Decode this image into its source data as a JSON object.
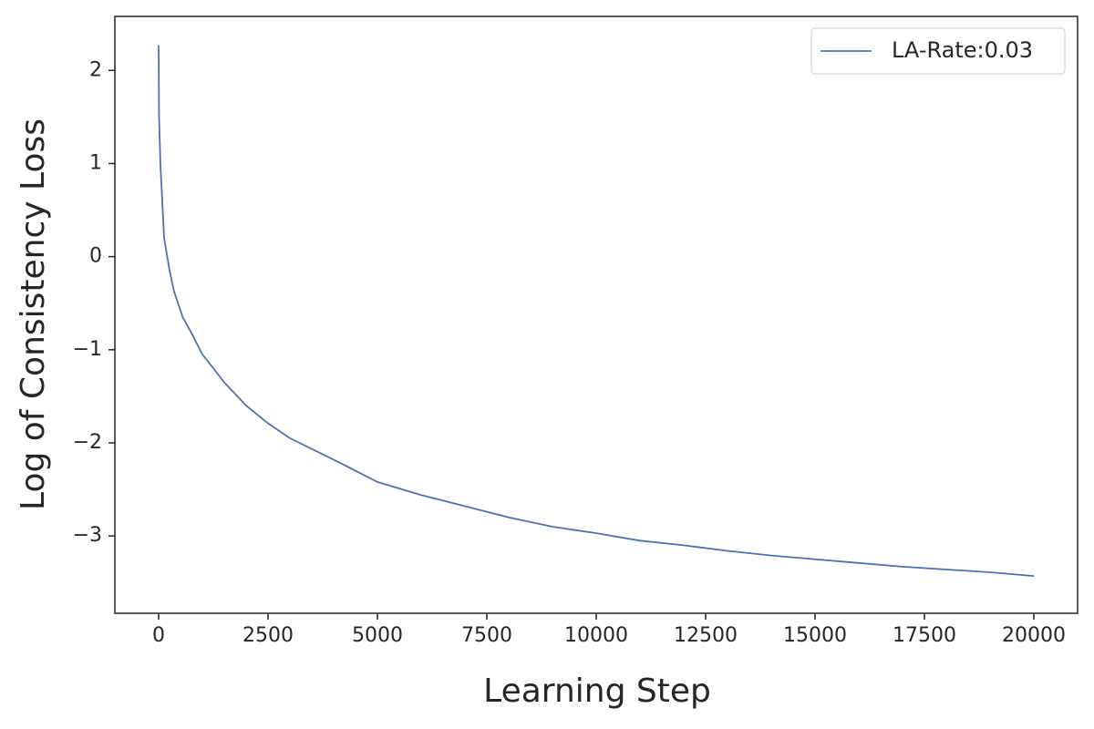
{
  "chart_data": {
    "type": "line",
    "xlabel": "Learning Step",
    "ylabel": "Log of Consistency Loss",
    "x": [
      0,
      10,
      40,
      125,
      250,
      350,
      550,
      750,
      1000,
      1500,
      2000,
      2500,
      3000,
      4000,
      5000,
      6000,
      7000,
      8000,
      9000,
      10000,
      11000,
      12000,
      13000,
      14000,
      15000,
      16000,
      17000,
      18000,
      19000,
      20000
    ],
    "series": [
      {
        "name": "LA-Rate:0.03",
        "color": "#4c72b0",
        "values": [
          2.27,
          1.5,
          1.0,
          0.2,
          -0.15,
          -0.37,
          -0.65,
          -0.82,
          -1.05,
          -1.35,
          -1.6,
          -1.79,
          -1.95,
          -2.18,
          -2.42,
          -2.56,
          -2.68,
          -2.8,
          -2.9,
          -2.97,
          -3.05,
          -3.1,
          -3.16,
          -3.21,
          -3.25,
          -3.29,
          -3.33,
          -3.36,
          -3.39,
          -3.43
        ]
      }
    ],
    "xlim": [
      -1000,
      21000
    ],
    "xticks": [
      0,
      2500,
      5000,
      7500,
      10000,
      12500,
      15000,
      17500,
      20000
    ],
    "ylim": [
      -3.83,
      2.58
    ],
    "yticks": [
      {
        "value": -3,
        "label": "−3"
      },
      {
        "value": -2,
        "label": "−2"
      },
      {
        "value": -1,
        "label": "−1"
      },
      0,
      1,
      2
    ],
    "grid": false,
    "legend": "upper right"
  }
}
